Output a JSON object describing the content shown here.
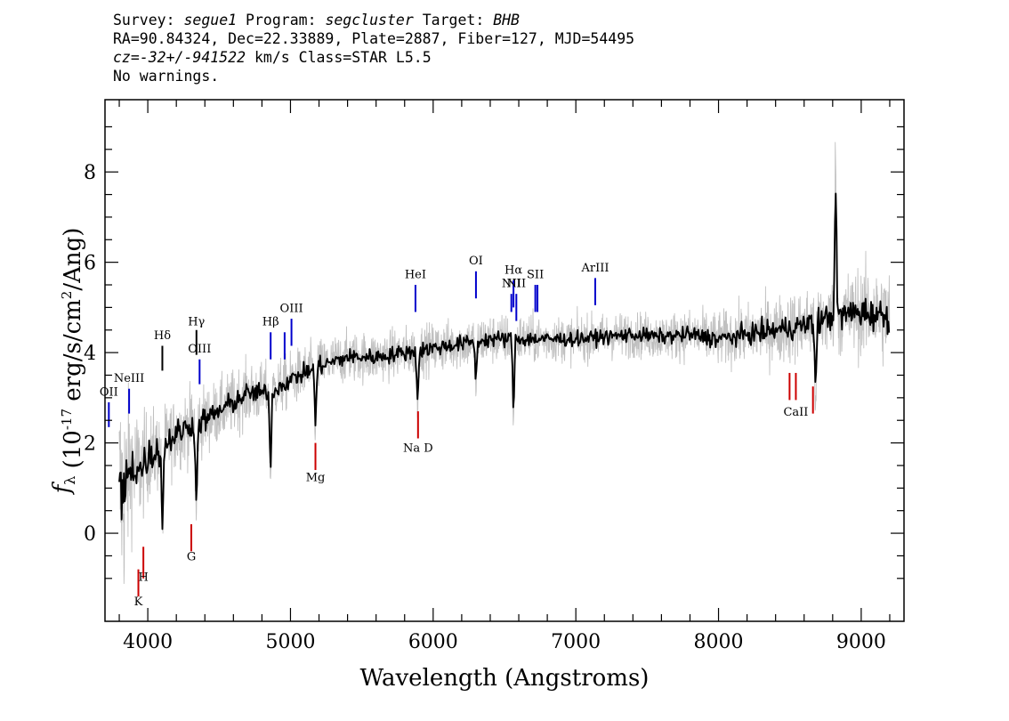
{
  "header": {
    "line1": {
      "survey_label": "Survey: ",
      "survey": "segue1",
      "program_label": " Program: ",
      "program": "segcluster",
      "target_label": " Target: ",
      "target": "BHB"
    },
    "line2": "RA=90.84324, Dec=22.33889, Plate=2887, Fiber=127, MJD=54495",
    "line3": {
      "cz_label": "cz=",
      "cz_value": "-32+/-941522",
      "cz_rest": " km/s Class=STAR L5.5"
    },
    "line4": "No warnings."
  },
  "chart_data": {
    "type": "line",
    "title": "",
    "xlabel": "Wavelength (Angstroms)",
    "ylabel": "f_λ (10^-17 erg/s/cm^2/Ang)",
    "xlim": [
      3700,
      9300
    ],
    "ylim": [
      -1.95,
      9.6
    ],
    "xticks": [
      4000,
      5000,
      6000,
      7000,
      8000,
      9000
    ],
    "xtick_labels": [
      "4000",
      "5000",
      "6000",
      "7000",
      "8000",
      "9000"
    ],
    "yticks": [
      0,
      2,
      4,
      6,
      8
    ],
    "ytick_labels": [
      "0",
      "2",
      "4",
      "6",
      "8"
    ],
    "grid": false,
    "series": [
      {
        "color": "#c0c0c0",
        "role": "noisy flux",
        "x": [
          3800,
          3830,
          3880,
          3950,
          4000,
          4100,
          4200,
          4300,
          4400,
          4500,
          4600,
          4700,
          4800,
          4900,
          5000,
          5200,
          5400,
          5600,
          5800,
          6000,
          6200,
          6400,
          6600,
          6800,
          7000,
          7200,
          7400,
          7600,
          7800,
          8000,
          8200,
          8400,
          8600,
          8800,
          9000,
          9200
        ],
        "y": [
          1.0,
          0.8,
          1.5,
          1.4,
          1.7,
          1.9,
          2.2,
          2.4,
          2.5,
          2.7,
          2.9,
          3.1,
          3.1,
          3.2,
          3.4,
          3.7,
          3.9,
          3.9,
          4.0,
          4.1,
          4.2,
          4.3,
          4.3,
          4.3,
          4.3,
          4.35,
          4.4,
          4.35,
          4.4,
          4.3,
          4.4,
          4.5,
          4.6,
          4.8,
          4.9,
          4.8
        ],
        "spread": [
          2.5,
          2.5,
          1.5,
          1.2,
          1.0,
          0.9,
          0.8,
          0.8,
          0.75,
          0.7,
          0.7,
          0.7,
          0.65,
          0.65,
          0.6,
          0.6,
          0.55,
          0.55,
          0.55,
          0.55,
          0.55,
          0.55,
          0.55,
          0.5,
          0.5,
          0.5,
          0.5,
          0.5,
          0.55,
          0.6,
          0.65,
          0.75,
          0.8,
          0.9,
          1.0,
          1.1
        ]
      },
      {
        "color": "#000000",
        "role": "smoothed flux",
        "x": [
          3800,
          3830,
          3880,
          3950,
          4000,
          4100,
          4200,
          4300,
          4400,
          4500,
          4600,
          4700,
          4800,
          4900,
          5000,
          5200,
          5400,
          5600,
          5800,
          6000,
          6200,
          6400,
          6600,
          6800,
          7000,
          7200,
          7400,
          7600,
          7800,
          8000,
          8200,
          8400,
          8600,
          8800,
          9000,
          9200
        ],
        "y": [
          1.0,
          0.8,
          1.5,
          1.4,
          1.7,
          1.9,
          2.2,
          2.4,
          2.5,
          2.7,
          2.9,
          3.1,
          3.1,
          3.2,
          3.4,
          3.7,
          3.9,
          3.9,
          4.0,
          4.1,
          4.2,
          4.3,
          4.3,
          4.3,
          4.3,
          4.35,
          4.4,
          4.35,
          4.4,
          4.3,
          4.4,
          4.5,
          4.6,
          4.8,
          4.9,
          4.8
        ],
        "spread": [
          0.8,
          0.8,
          0.5,
          0.45,
          0.4,
          0.35,
          0.3,
          0.3,
          0.28,
          0.25,
          0.25,
          0.22,
          0.22,
          0.2,
          0.2,
          0.2,
          0.18,
          0.18,
          0.18,
          0.18,
          0.18,
          0.18,
          0.18,
          0.16,
          0.16,
          0.16,
          0.16,
          0.16,
          0.18,
          0.2,
          0.22,
          0.25,
          0.28,
          0.32,
          0.35,
          0.35
        ]
      }
    ],
    "features": [
      {
        "x": 4860,
        "y": 1.3
      },
      {
        "x": 4340,
        "y": 0.4
      },
      {
        "x": 4102,
        "y": 0.1
      },
      {
        "x": 5175,
        "y": 2.4
      },
      {
        "x": 5890,
        "y": 2.9
      },
      {
        "x": 6300,
        "y": 3.3
      },
      {
        "x": 6563,
        "y": 2.7
      },
      {
        "x": 8820,
        "y": 7.9
      },
      {
        "x": 8680,
        "y": 3.1
      }
    ],
    "emission_lines": [
      {
        "label": "OII",
        "x": 3727,
        "y0": 2.35,
        "y1": 2.9,
        "label_y": 3.05,
        "color": "#0000cc"
      },
      {
        "label": "NeIII",
        "x": 3869,
        "y0": 2.65,
        "y1": 3.2,
        "label_y": 3.35,
        "color": "#0000cc"
      },
      {
        "label": "Hδ",
        "x": 4102,
        "y0": 3.6,
        "y1": 4.15,
        "label_y": 4.3,
        "color": "#000000"
      },
      {
        "label": "Hγ",
        "x": 4341,
        "y0": 3.95,
        "y1": 4.5,
        "label_y": 4.6,
        "color": "#000000"
      },
      {
        "label": "OIII",
        "x": 4363,
        "y0": 3.3,
        "y1": 3.85,
        "label_y": 4.0,
        "color": "#0000cc"
      },
      {
        "label": "Hβ",
        "x": 4861,
        "y0": 3.85,
        "y1": 4.45,
        "label_y": 4.6,
        "color": "#0000cc"
      },
      {
        "label": "",
        "x": 4959,
        "y0": 3.85,
        "y1": 4.45,
        "label_y": 4.6,
        "color": "#0000cc"
      },
      {
        "label": "OIII",
        "x": 5007,
        "y0": 4.15,
        "y1": 4.75,
        "label_y": 4.9,
        "color": "#0000cc"
      },
      {
        "label": "HeI",
        "x": 5876,
        "y0": 4.9,
        "y1": 5.5,
        "label_y": 5.65,
        "color": "#0000cc"
      },
      {
        "label": "OI",
        "x": 6300,
        "y0": 5.2,
        "y1": 5.8,
        "label_y": 5.95,
        "color": "#0000cc"
      },
      {
        "label": "NII",
        "x": 6548,
        "y0": 4.9,
        "y1": 5.3,
        "label_y": 5.45,
        "color": "#0000cc"
      },
      {
        "label": "Hα",
        "x": 6563,
        "y0": 5.0,
        "y1": 5.6,
        "label_y": 5.75,
        "color": "#0000cc"
      },
      {
        "label": "NII",
        "x": 6583,
        "y0": 4.7,
        "y1": 5.3,
        "label_y": 5.45,
        "color": "#0000cc"
      },
      {
        "label": "SII",
        "x": 6716,
        "y0": 4.9,
        "y1": 5.5,
        "label_y": 5.65,
        "color": "#0000cc"
      },
      {
        "label": "",
        "x": 6731,
        "y0": 4.9,
        "y1": 5.5,
        "label_y": 5.65,
        "color": "#0000cc"
      },
      {
        "label": "ArIII",
        "x": 7136,
        "y0": 5.05,
        "y1": 5.65,
        "label_y": 5.8,
        "color": "#0000cc"
      }
    ],
    "absorption_lines": [
      {
        "label": "K",
        "x": 3934,
        "y0": -1.4,
        "y1": -0.8,
        "label_y": -1.6,
        "color": "#cc0000"
      },
      {
        "label": "H",
        "x": 3969,
        "y0": -1.0,
        "y1": -0.3,
        "label_y": -1.05,
        "color": "#cc0000"
      },
      {
        "label": "G",
        "x": 4305,
        "y0": -0.4,
        "y1": 0.2,
        "label_y": -0.6,
        "color": "#cc0000"
      },
      {
        "label": "Mg",
        "x": 5175,
        "y0": 1.4,
        "y1": 2.0,
        "label_y": 1.15,
        "color": "#cc0000"
      },
      {
        "label": "Na D",
        "x": 5894,
        "y0": 2.1,
        "y1": 2.7,
        "label_y": 1.8,
        "color": "#cc0000"
      },
      {
        "label": "",
        "x": 8498,
        "y0": 2.95,
        "y1": 3.55,
        "label_y": 2.6,
        "color": "#cc0000"
      },
      {
        "label": "CaII",
        "x": 8542,
        "y0": 2.95,
        "y1": 3.55,
        "label_y": 2.6,
        "color": "#cc0000"
      },
      {
        "label": "",
        "x": 8662,
        "y0": 2.65,
        "y1": 3.25,
        "label_y": 2.6,
        "color": "#cc0000"
      }
    ]
  }
}
